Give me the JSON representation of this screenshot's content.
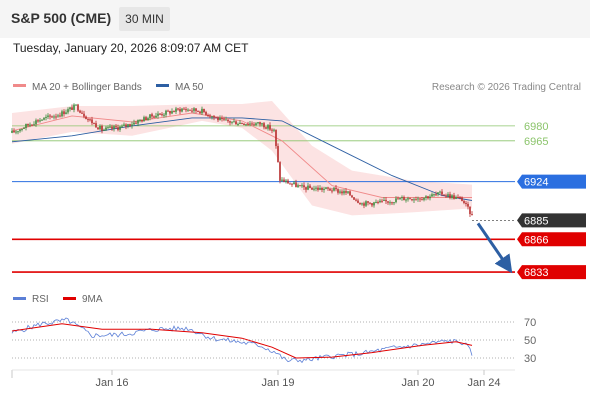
{
  "header": {
    "instrument": "S&P 500 (CME)",
    "timeframe": "30 MIN",
    "datetime": "Tuesday, January 20, 2026 8:09:07 AM CET"
  },
  "legend": {
    "ma20": "MA 20 + Bollinger Bands",
    "ma50": "MA 50",
    "rsi": "RSI",
    "ma9": "9MA"
  },
  "source": "Research © 2026 Trading Central",
  "colors": {
    "candle_up": "#3a8a3a",
    "candle_down": "#b62a2a",
    "ma20": "#f08a8a",
    "bollinger": "#fbd9d9",
    "ma50": "#2d5fa3",
    "resistance": "#8bc46b",
    "pivot": "#2b6fe0",
    "support": "#e00000",
    "last": "#333333",
    "rsi": "#5b7fd6",
    "rsi_ma": "#e00000",
    "arrow": "#2d5fa3"
  },
  "chart_data": {
    "type": "candlestick",
    "y_range": [
      6815,
      7000
    ],
    "x_range": [
      0,
      250
    ],
    "x_ticks": [
      {
        "label": "Jan 16",
        "x": 50
      },
      {
        "label": "Jan 19",
        "x": 133
      },
      {
        "label": "Jan 20",
        "x": 203
      },
      {
        "label": "Jan 24",
        "x": 236
      }
    ],
    "levels": [
      {
        "value": 6980,
        "label": "6980",
        "kind": "resistance"
      },
      {
        "value": 6965,
        "label": "6965",
        "kind": "resistance"
      },
      {
        "value": 6924,
        "label": "6924",
        "kind": "pivot"
      },
      {
        "value": 6885,
        "label": "6885",
        "kind": "last"
      },
      {
        "value": 6866,
        "label": "6866",
        "kind": "support"
      },
      {
        "value": 6833,
        "label": "6833",
        "kind": "support"
      }
    ],
    "forecast_arrow": {
      "from": {
        "x": 233,
        "y": 6882
      },
      "to": {
        "x": 248,
        "y": 6838
      }
    },
    "anchors": [
      {
        "x": 0,
        "v": 6973
      },
      {
        "x": 12,
        "v": 6985
      },
      {
        "x": 24,
        "v": 6992
      },
      {
        "x": 32,
        "v": 7000
      },
      {
        "x": 38,
        "v": 6987
      },
      {
        "x": 45,
        "v": 6976
      },
      {
        "x": 55,
        "v": 6979
      },
      {
        "x": 70,
        "v": 6990
      },
      {
        "x": 85,
        "v": 6997
      },
      {
        "x": 95,
        "v": 6995
      },
      {
        "x": 105,
        "v": 6985
      },
      {
        "x": 115,
        "v": 6983
      },
      {
        "x": 125,
        "v": 6982
      },
      {
        "x": 131,
        "v": 6975
      },
      {
        "x": 134,
        "v": 6926
      },
      {
        "x": 145,
        "v": 6918
      },
      {
        "x": 160,
        "v": 6916
      },
      {
        "x": 168,
        "v": 6912
      },
      {
        "x": 175,
        "v": 6902
      },
      {
        "x": 185,
        "v": 6903
      },
      {
        "x": 195,
        "v": 6907
      },
      {
        "x": 205,
        "v": 6908
      },
      {
        "x": 215,
        "v": 6912
      },
      {
        "x": 225,
        "v": 6906
      },
      {
        "x": 230,
        "v": 6890
      }
    ],
    "ma50": [
      {
        "x": 0,
        "v": 6964
      },
      {
        "x": 30,
        "v": 6970
      },
      {
        "x": 60,
        "v": 6980
      },
      {
        "x": 90,
        "v": 6988
      },
      {
        "x": 115,
        "v": 6988
      },
      {
        "x": 135,
        "v": 6985
      },
      {
        "x": 160,
        "v": 6960
      },
      {
        "x": 190,
        "v": 6930
      },
      {
        "x": 215,
        "v": 6910
      },
      {
        "x": 230,
        "v": 6905
      }
    ],
    "ma20": [
      {
        "x": 0,
        "v": 6975
      },
      {
        "x": 30,
        "v": 6990
      },
      {
        "x": 60,
        "v": 6984
      },
      {
        "x": 90,
        "v": 6993
      },
      {
        "x": 115,
        "v": 6985
      },
      {
        "x": 135,
        "v": 6965
      },
      {
        "x": 160,
        "v": 6920
      },
      {
        "x": 185,
        "v": 6908
      },
      {
        "x": 210,
        "v": 6908
      },
      {
        "x": 230,
        "v": 6908
      }
    ],
    "band_upper": [
      {
        "x": 0,
        "v": 6993
      },
      {
        "x": 30,
        "v": 7000
      },
      {
        "x": 60,
        "v": 7000
      },
      {
        "x": 95,
        "v": 7002
      },
      {
        "x": 115,
        "v": 7002
      },
      {
        "x": 130,
        "v": 7005
      },
      {
        "x": 150,
        "v": 6960
      },
      {
        "x": 170,
        "v": 6935
      },
      {
        "x": 200,
        "v": 6925
      },
      {
        "x": 230,
        "v": 6921
      }
    ],
    "band_lower": [
      {
        "x": 0,
        "v": 6962
      },
      {
        "x": 30,
        "v": 6974
      },
      {
        "x": 60,
        "v": 6970
      },
      {
        "x": 95,
        "v": 6985
      },
      {
        "x": 115,
        "v": 6978
      },
      {
        "x": 130,
        "v": 6955
      },
      {
        "x": 150,
        "v": 6900
      },
      {
        "x": 170,
        "v": 6890
      },
      {
        "x": 200,
        "v": 6893
      },
      {
        "x": 230,
        "v": 6897
      }
    ],
    "rsi": {
      "levels": [
        70,
        50,
        30
      ],
      "y_range": [
        20,
        80
      ],
      "values": [
        {
          "x": 0,
          "v": 58
        },
        {
          "x": 15,
          "v": 68
        },
        {
          "x": 28,
          "v": 72
        },
        {
          "x": 40,
          "v": 55
        },
        {
          "x": 55,
          "v": 56
        },
        {
          "x": 72,
          "v": 62
        },
        {
          "x": 88,
          "v": 63
        },
        {
          "x": 100,
          "v": 52
        },
        {
          "x": 113,
          "v": 48
        },
        {
          "x": 124,
          "v": 44
        },
        {
          "x": 132,
          "v": 36
        },
        {
          "x": 137,
          "v": 27
        },
        {
          "x": 148,
          "v": 28
        },
        {
          "x": 160,
          "v": 32
        },
        {
          "x": 175,
          "v": 35
        },
        {
          "x": 190,
          "v": 41
        },
        {
          "x": 205,
          "v": 45
        },
        {
          "x": 218,
          "v": 49
        },
        {
          "x": 226,
          "v": 47
        },
        {
          "x": 230,
          "v": 35
        }
      ],
      "ma9": [
        {
          "x": 0,
          "v": 60
        },
        {
          "x": 25,
          "v": 68
        },
        {
          "x": 45,
          "v": 62
        },
        {
          "x": 70,
          "v": 62
        },
        {
          "x": 95,
          "v": 58
        },
        {
          "x": 115,
          "v": 52
        },
        {
          "x": 130,
          "v": 42
        },
        {
          "x": 142,
          "v": 30
        },
        {
          "x": 160,
          "v": 31
        },
        {
          "x": 180,
          "v": 36
        },
        {
          "x": 205,
          "v": 44
        },
        {
          "x": 222,
          "v": 48
        },
        {
          "x": 230,
          "v": 44
        }
      ]
    }
  }
}
